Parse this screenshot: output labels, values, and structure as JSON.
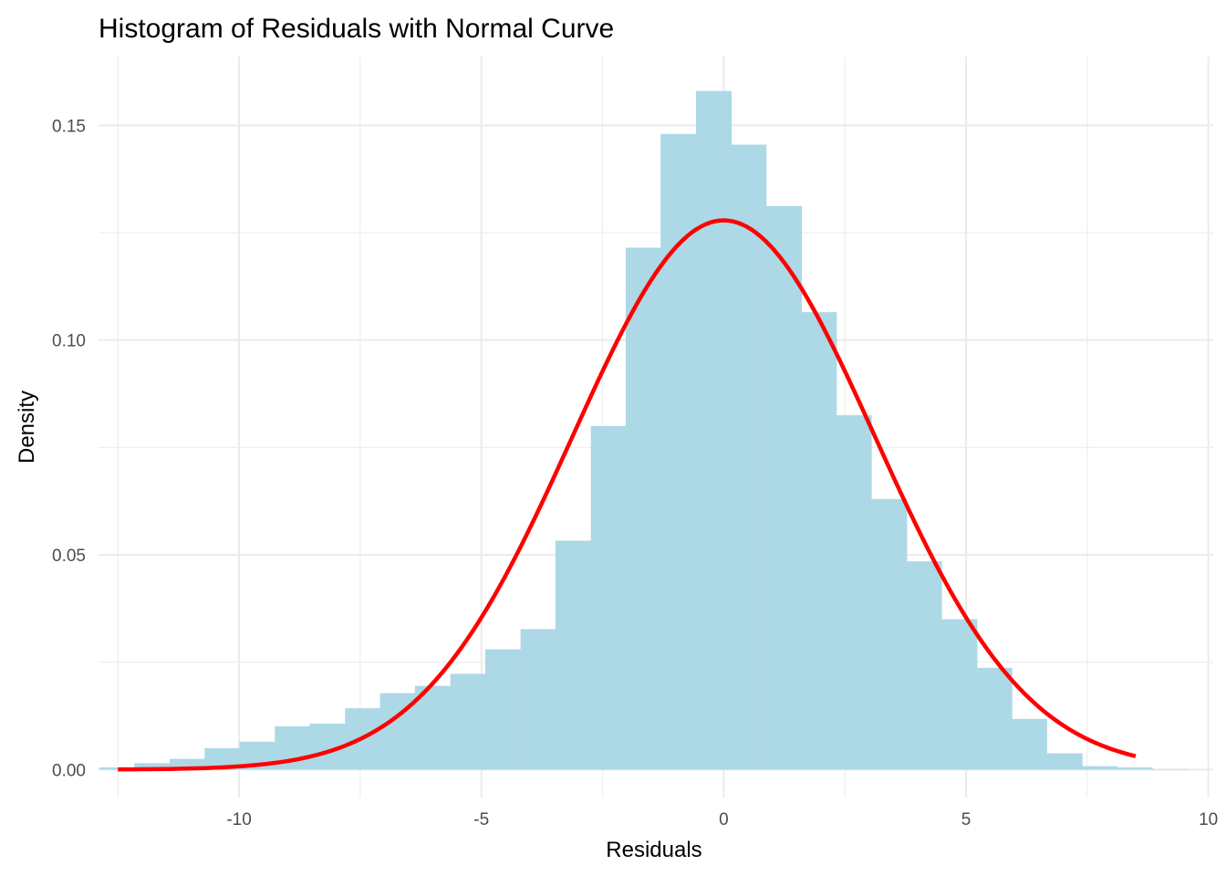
{
  "chart_data": {
    "type": "bar",
    "title": "Histogram of Residuals with Normal Curve",
    "xlabel": "Residuals",
    "ylabel": "Density",
    "xlim": [
      -12.9,
      10.1
    ],
    "ylim": [
      -0.0065,
      0.166
    ],
    "x_ticks": [
      -10,
      -5,
      0,
      5,
      10
    ],
    "x_tick_labels": [
      "-10",
      "-5",
      "0",
      "5",
      "10"
    ],
    "y_ticks": [
      0.0,
      0.05,
      0.1,
      0.15
    ],
    "y_tick_labels": [
      "0.00",
      "0.05",
      "0.10",
      "0.15"
    ],
    "grid": true,
    "legend": "none",
    "bin_width": 0.724,
    "bin_centers": [
      -12.52,
      -11.8,
      -11.07,
      -10.35,
      -9.63,
      -8.9,
      -8.18,
      -7.45,
      -6.73,
      -6.01,
      -5.28,
      -4.56,
      -3.83,
      -3.11,
      -2.38,
      -1.66,
      -0.94,
      -0.21,
      0.51,
      1.24,
      1.96,
      2.68,
      3.41,
      4.13,
      4.86,
      5.58,
      6.3,
      7.03,
      7.75,
      8.48,
      9.2
    ],
    "densities": [
      0.0005,
      0.0015,
      0.0025,
      0.005,
      0.0065,
      0.0101,
      0.0107,
      0.0143,
      0.0178,
      0.0195,
      0.0223,
      0.028,
      0.0327,
      0.0533,
      0.08,
      0.1215,
      0.148,
      0.158,
      0.1455,
      0.1312,
      0.1065,
      0.0825,
      0.063,
      0.0485,
      0.035,
      0.0237,
      0.0118,
      0.0038,
      0.0008,
      0.0005,
      0.0001
    ],
    "curve": {
      "type": "normal-density",
      "mean": 0.0,
      "sd": 3.12,
      "x_range": [
        -12.5,
        8.5
      ]
    },
    "colors": {
      "bars": "#add8e6",
      "curve": "#ff0000",
      "grid": "#ebebeb",
      "background": "#ffffff"
    }
  }
}
